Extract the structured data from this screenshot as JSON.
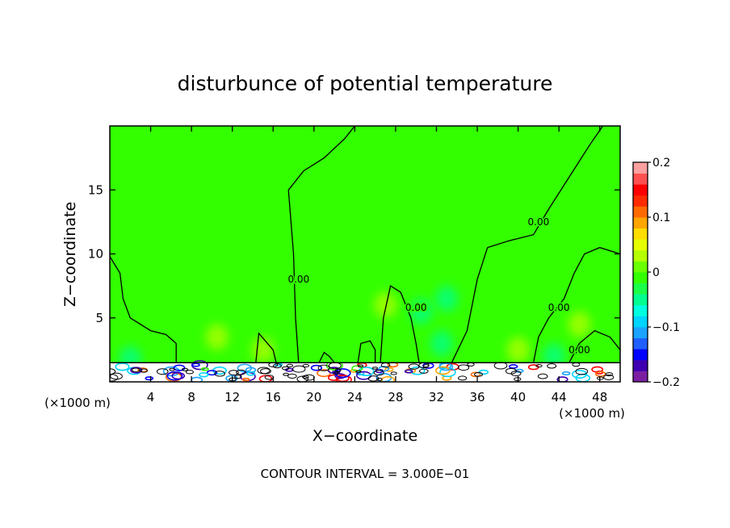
{
  "chart_data": {
    "type": "heatmap",
    "title": "disturbunce of potential temperature",
    "xlabel": "X−coordinate",
    "ylabel": "Z−coordinate",
    "x_unit": "(×1000 m)",
    "x_unit_right": "(×1000 m)",
    "note": "CONTOUR INTERVAL = 3.000E−01",
    "xlim": [
      0,
      50
    ],
    "ylim": [
      0,
      20
    ],
    "xticks": [
      4,
      8,
      12,
      16,
      20,
      24,
      28,
      32,
      36,
      40,
      44,
      48
    ],
    "yticks": [
      5,
      10,
      15
    ],
    "colorbar": {
      "range": [
        -0.2,
        0.2
      ],
      "ticks": [
        0.2,
        0.1,
        0,
        -0.1,
        -0.2
      ],
      "tick_labels": [
        "0.2",
        "0.1",
        "0",
        "−0.1",
        "−0.2"
      ],
      "colors": [
        "#7b1fa2",
        "#3e00b0",
        "#0000ff",
        "#1f5fff",
        "#1aa3ff",
        "#00d5ff",
        "#00ffe0",
        "#00ff90",
        "#1aff4a",
        "#33ff00",
        "#6aff00",
        "#b5ff00",
        "#e6ff00",
        "#ffdd00",
        "#ffa500",
        "#ff6a00",
        "#ff2a00",
        "#ff0000",
        "#ff5050",
        "#ffa0a0"
      ]
    },
    "field": {
      "background_value": 0,
      "background_color": "#33ff00",
      "anomalies": [
        {
          "x": 2.0,
          "z": 1.8,
          "value": -0.05
        },
        {
          "x": 10.5,
          "z": 3.5,
          "value": 0.03
        },
        {
          "x": 15.0,
          "z": 2.5,
          "value": 0.03
        },
        {
          "x": 27.0,
          "z": 6.0,
          "value": 0.03
        },
        {
          "x": 30.5,
          "z": 5.5,
          "value": -0.04
        },
        {
          "x": 33.0,
          "z": 6.5,
          "value": -0.05
        },
        {
          "x": 32.5,
          "z": 3.0,
          "value": -0.06
        },
        {
          "x": 40.0,
          "z": 2.5,
          "value": 0.03
        },
        {
          "x": 43.5,
          "z": 2.0,
          "value": -0.05
        },
        {
          "x": 46.0,
          "z": 4.5,
          "value": 0.03
        }
      ]
    },
    "contours": [
      {
        "value": 0.0,
        "label": "0.00",
        "label_at": [
          18.5,
          8.0
        ],
        "points": [
          [
            18.5,
            1.5
          ],
          [
            18.2,
            5
          ],
          [
            18.0,
            10
          ],
          [
            17.5,
            15
          ],
          [
            19,
            16.5
          ],
          [
            21,
            17.5
          ],
          [
            23,
            19
          ],
          [
            24,
            20
          ]
        ]
      },
      {
        "value": 0.0,
        "label": "0.00",
        "label_at": [
          42.0,
          12.5
        ],
        "points": [
          [
            33.5,
            1.5
          ],
          [
            35,
            4
          ],
          [
            36,
            8
          ],
          [
            37,
            10.5
          ],
          [
            39,
            11
          ],
          [
            41.5,
            11.5
          ],
          [
            43,
            13.5
          ],
          [
            45,
            16
          ],
          [
            47,
            18.5
          ],
          [
            48.3,
            20
          ]
        ]
      },
      {
        "value": 0.0,
        "label": "0.00",
        "label_at": [
          30.0,
          5.8
        ],
        "points": [
          [
            26.5,
            1.5
          ],
          [
            26.8,
            5
          ],
          [
            27.5,
            7.5
          ],
          [
            28.5,
            7
          ],
          [
            29.5,
            5
          ],
          [
            30,
            3
          ],
          [
            30.3,
            1.5
          ]
        ]
      },
      {
        "value": 0.0,
        "label": "0.00",
        "label_at": [
          44.0,
          5.8
        ],
        "points": [
          [
            41.5,
            1.5
          ],
          [
            42,
            3.5
          ],
          [
            43,
            5
          ],
          [
            44.5,
            6.5
          ],
          [
            45.5,
            8.5
          ],
          [
            46.5,
            10
          ],
          [
            48,
            10.5
          ],
          [
            50,
            10
          ]
        ]
      },
      {
        "value": 0.0,
        "label": "0.00",
        "label_at": [
          46.0,
          2.5
        ],
        "points": [
          [
            45,
            1.5
          ],
          [
            46,
            3
          ],
          [
            47.5,
            4
          ],
          [
            49,
            3.5
          ],
          [
            50,
            2.5
          ]
        ]
      },
      {
        "value": 0.0,
        "label": "",
        "label_at": null,
        "points": [
          [
            0,
            9.8
          ],
          [
            1,
            8.5
          ],
          [
            1.3,
            6.5
          ],
          [
            2,
            5
          ],
          [
            4,
            4
          ],
          [
            5.5,
            3.7
          ],
          [
            6.5,
            3
          ],
          [
            6.5,
            1.5
          ]
        ]
      },
      {
        "value": 0.0,
        "label": "",
        "label_at": null,
        "points": [
          [
            14.3,
            1.5
          ],
          [
            14.6,
            3.8
          ],
          [
            16,
            2.5
          ],
          [
            16.3,
            1.5
          ]
        ]
      },
      {
        "value": 0.0,
        "label": "",
        "label_at": null,
        "points": [
          [
            20.5,
            1.5
          ],
          [
            21,
            2.3
          ],
          [
            21.5,
            2.0
          ],
          [
            22,
            1.5
          ]
        ]
      },
      {
        "value": 0.0,
        "label": "",
        "label_at": null,
        "points": [
          [
            24.3,
            1.5
          ],
          [
            24.6,
            3
          ],
          [
            25.5,
            3.2
          ],
          [
            26,
            2.5
          ],
          [
            26,
            1.5
          ]
        ]
      }
    ],
    "grid": false,
    "legend": "colorbar-right"
  }
}
